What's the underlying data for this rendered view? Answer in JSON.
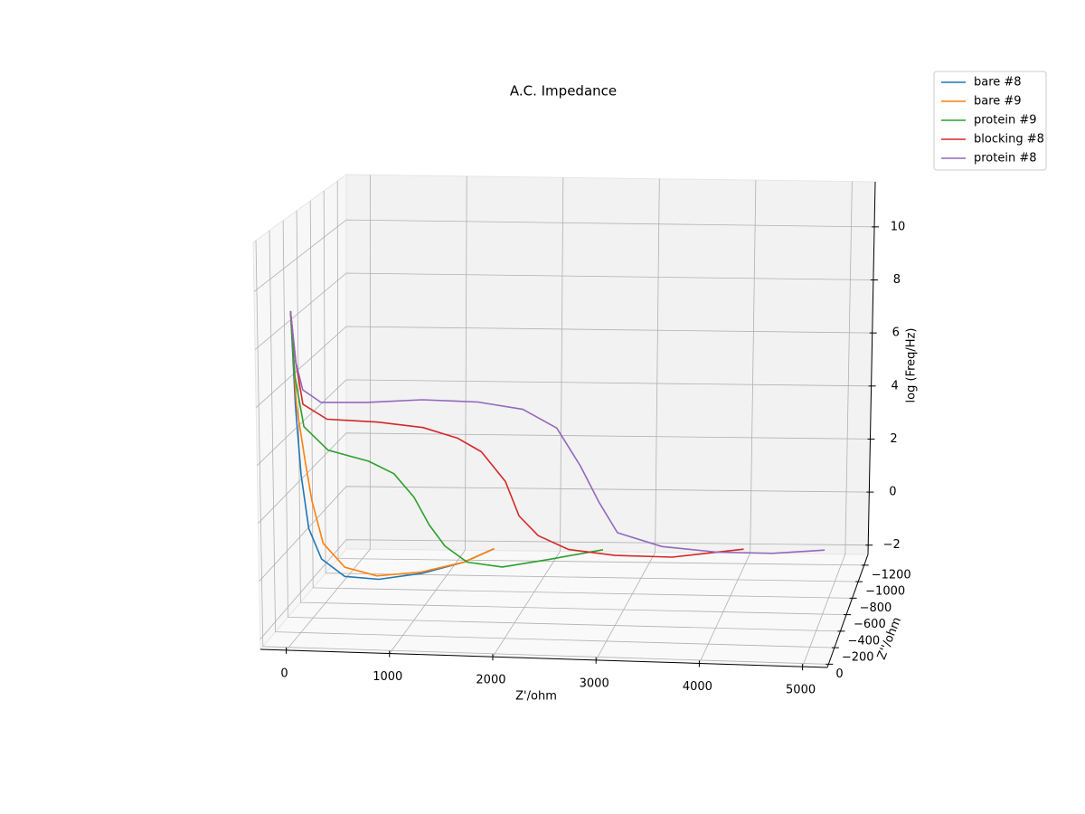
{
  "chart_data": {
    "type": "line3d",
    "title": "A.C. Impedance",
    "xlabel": "Z'/ohm",
    "ylabel": "Z''/ohm",
    "zlabel": "log (Freq/Hz)",
    "xlim": [
      -250,
      5240
    ],
    "ylim": [
      -1330,
      40
    ],
    "zlim": [
      -2.35,
      11.7
    ],
    "xticks": [
      0,
      1000,
      2000,
      3000,
      4000,
      5000
    ],
    "yticks": [
      {
        "value": -1200,
        "label": "−1200"
      },
      {
        "value": -1000,
        "label": "−1000"
      },
      {
        "value": -800,
        "label": "−800"
      },
      {
        "value": -600,
        "label": "−600"
      },
      {
        "value": -400,
        "label": "−400"
      },
      {
        "value": -200,
        "label": "−200"
      },
      0
    ],
    "zticks": [
      {
        "value": -2,
        "label": "−2"
      },
      0,
      2,
      4,
      6,
      8,
      10
    ],
    "grid": true,
    "legend": "upper right",
    "series": [
      {
        "name": "bare #8",
        "color": "#1f77b4",
        "x": [
          70,
          90,
          110,
          140,
          200,
          330,
          550,
          850,
          1150,
          1350
        ],
        "y": [
          0,
          -20,
          -60,
          -120,
          -220,
          -380,
          -580,
          -820,
          -1050,
          -1250
        ],
        "z": [
          9.3,
          6,
          3.5,
          1.5,
          0.2,
          -0.8,
          -1.4,
          -1.8,
          -2,
          -2.05
        ]
      },
      {
        "name": "bare #9",
        "color": "#ff7f0e",
        "x": [
          70,
          100,
          150,
          180,
          230,
          350,
          550,
          850,
          1150,
          1350
        ],
        "y": [
          0,
          -20,
          -60,
          -110,
          -200,
          -350,
          -550,
          -800,
          -1050,
          -1250
        ],
        "z": [
          9.3,
          6,
          4,
          2.5,
          0.8,
          -0.4,
          -1.2,
          -1.7,
          -2,
          -2.05
        ]
      },
      {
        "name": "protein #9",
        "color": "#2ca02c",
        "x": [
          70,
          90,
          150,
          350,
          700,
          900,
          1050,
          1150,
          1250,
          1400,
          1650,
          2000,
          2480
        ],
        "y": [
          0,
          -20,
          -50,
          -100,
          -170,
          -250,
          -330,
          -420,
          -520,
          -650,
          -850,
          -1100,
          -1270
        ],
        "z": [
          9.3,
          7,
          5.2,
          4.3,
          3.8,
          3.2,
          2.2,
          1,
          0,
          -0.9,
          -1.6,
          -2,
          -2.1
        ]
      },
      {
        "name": "blocking #8",
        "color": "#d62728",
        "x": [
          70,
          100,
          150,
          350,
          800,
          1200,
          1500,
          1700,
          1900,
          2000,
          2150,
          2400,
          2800,
          3300,
          3950
        ],
        "y": [
          0,
          -20,
          -40,
          -90,
          -160,
          -230,
          -300,
          -360,
          -430,
          -500,
          -580,
          -700,
          -850,
          -1050,
          -1280
        ],
        "z": [
          9.3,
          7.5,
          6,
          5.4,
          5.2,
          4.9,
          4.4,
          3.8,
          2.6,
          1.2,
          0.3,
          -0.5,
          -1.1,
          -1.7,
          -2.05
        ]
      },
      {
        "name": "protein #8",
        "color": "#9467bd",
        "x": [
          70,
          100,
          150,
          300,
          700,
          1200,
          1700,
          2100,
          2400,
          2600,
          2750,
          2900,
          3300,
          3800,
          4300,
          4800
        ],
        "y": [
          0,
          -20,
          -40,
          -80,
          -150,
          -220,
          -300,
          -380,
          -450,
          -520,
          -600,
          -680,
          -800,
          -950,
          -1150,
          -1280
        ],
        "z": [
          9.3,
          7.5,
          6.5,
          6,
          5.9,
          5.9,
          5.7,
          5.3,
          4.5,
          3,
          1.5,
          0.2,
          -0.6,
          -1.2,
          -1.8,
          -2.05
        ]
      }
    ]
  }
}
